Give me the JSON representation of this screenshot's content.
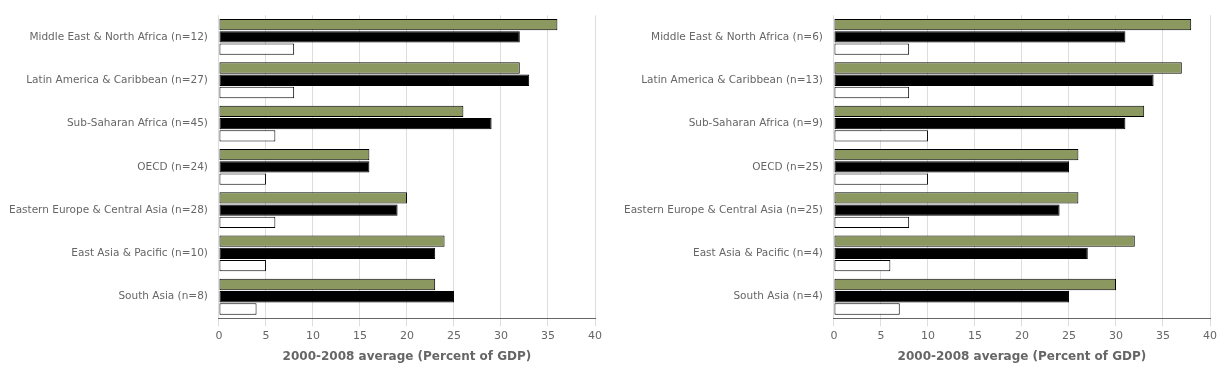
{
  "chart_data": [
    {
      "type": "bar",
      "orientation": "horizontal",
      "categories": [
        "Middle East & North Africa (n=12)",
        "Latin America & Caribbean (n=27)",
        "Sub-Saharan Africa (n=45)",
        "OECD (n=24)",
        "Eastern Europe & Central Asia (n=28)",
        "East Asia & Pacific (n=10)",
        "South Asia (n=8)"
      ],
      "series": [
        {
          "color": "#8B9960",
          "values": [
            36,
            32,
            26,
            16,
            20,
            24,
            23
          ]
        },
        {
          "color": "#000000",
          "values": [
            32,
            33,
            29,
            16,
            19,
            23,
            25
          ]
        },
        {
          "color": "#ffffff",
          "values": [
            8,
            8,
            6,
            5,
            6,
            5,
            4
          ]
        }
      ],
      "xlabel": "2000-2008 average (Percent of GDP)",
      "xlim": [
        0,
        40
      ],
      "xticks": [
        0,
        5,
        10,
        15,
        20,
        25,
        30,
        35,
        40
      ],
      "grid": true
    },
    {
      "type": "bar",
      "orientation": "horizontal",
      "categories": [
        "Middle East & North Africa (n=6)",
        "Latin America & Caribbean (n=13)",
        "Sub-Saharan Africa (n=9)",
        "OECD (n=25)",
        "Eastern Europe & Central Asia (n=25)",
        "East Asia & Pacific (n=4)",
        "South Asia (n=4)"
      ],
      "series": [
        {
          "color": "#8B9960",
          "values": [
            38,
            37,
            33,
            26,
            26,
            32,
            30
          ]
        },
        {
          "color": "#000000",
          "values": [
            31,
            34,
            31,
            25,
            24,
            27,
            25
          ]
        },
        {
          "color": "#ffffff",
          "values": [
            8,
            8,
            10,
            10,
            8,
            6,
            7
          ]
        }
      ],
      "xlabel": "2000-2008 average (Percent of GDP)",
      "xlim": [
        0,
        40
      ],
      "xticks": [
        0,
        5,
        10,
        15,
        20,
        25,
        30,
        35,
        40
      ],
      "grid": true
    }
  ]
}
